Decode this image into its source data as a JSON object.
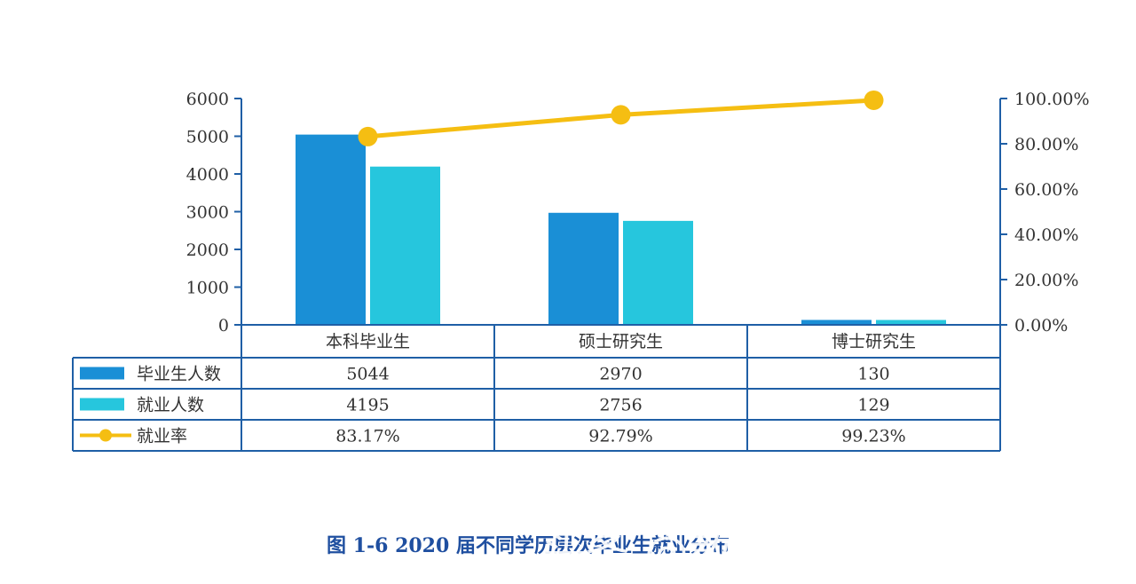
{
  "chart_data": {
    "type": "bar",
    "categories": [
      "本科毕业生",
      "硕士研究生",
      "博士研究生"
    ],
    "series": [
      {
        "name": "毕业生人数",
        "kind": "bar",
        "axis": "left",
        "color": "#1a8fd6",
        "values": [
          5044,
          2970,
          130
        ]
      },
      {
        "name": "就业人数",
        "kind": "bar",
        "axis": "left",
        "color": "#26c6dd",
        "values": [
          4195,
          2756,
          129
        ]
      },
      {
        "name": "就业率",
        "kind": "line",
        "axis": "right",
        "color": "#f5be12",
        "values": [
          83.17,
          92.79,
          99.23
        ]
      }
    ],
    "data_table": {
      "rows": [
        [
          "5044",
          "2970",
          "130"
        ],
        [
          "4195",
          "2756",
          "129"
        ],
        [
          "83.17%",
          "92.79%",
          "99.23%"
        ]
      ]
    },
    "y_left": {
      "ylim": [
        0,
        6000
      ],
      "ticks": [
        "0",
        "1000",
        "2000",
        "3000",
        "4000",
        "5000",
        "6000"
      ]
    },
    "y_right": {
      "ylim": [
        0,
        100
      ],
      "ticks": [
        "0.00%",
        "20.00%",
        "40.00%",
        "60.00%",
        "80.00%",
        "100.00%"
      ]
    },
    "grid": false,
    "legend_placement": "data-table-left",
    "caption": "图 1-6   2020 届不同学历层次毕业生就业分布",
    "watermark": "头条 @教育 学人 曾老师",
    "axis_color": "#1f5fa6",
    "background": "#ffffff"
  }
}
